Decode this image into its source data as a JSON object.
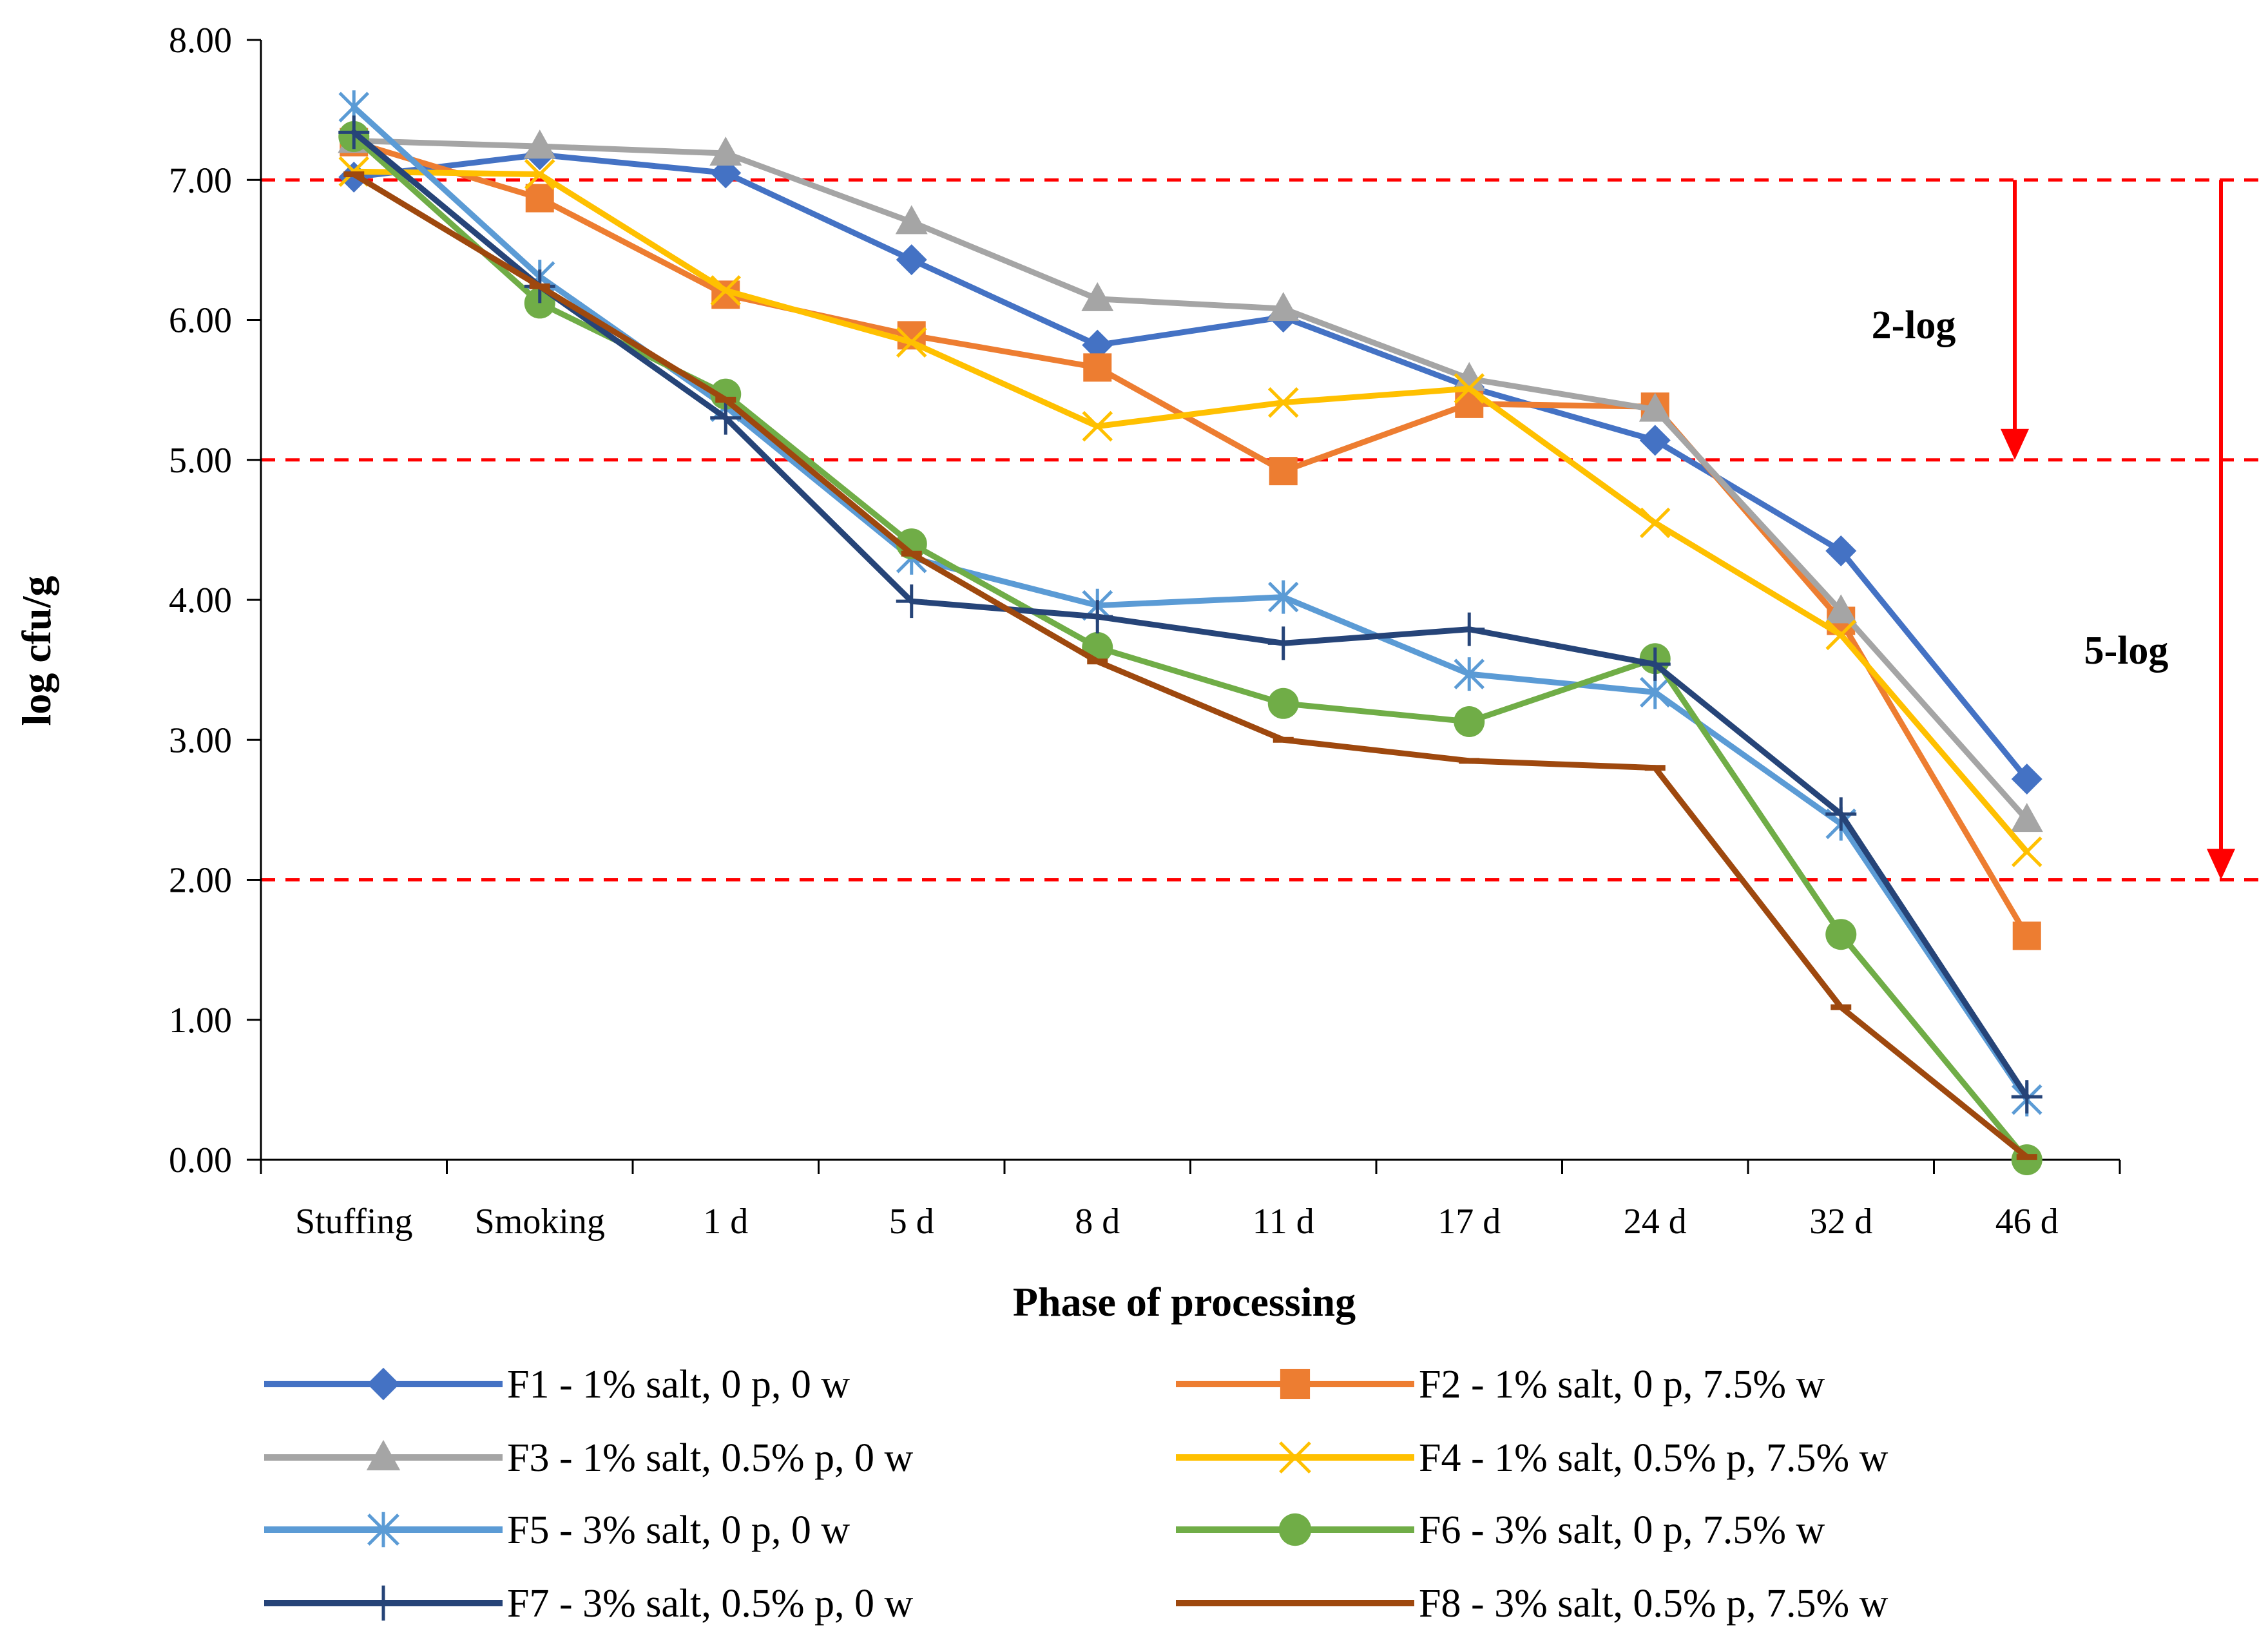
{
  "chart_data": {
    "type": "line",
    "title": "",
    "xlabel": "Phase of processing",
    "ylabel": "log cfu/g",
    "ylim": [
      0,
      8
    ],
    "yticks": [
      "0.00",
      "1.00",
      "2.00",
      "3.00",
      "4.00",
      "5.00",
      "6.00",
      "7.00",
      "8.00"
    ],
    "categories": [
      "Stuffing",
      "Smoking",
      "1 d",
      "5 d",
      "8 d",
      "11 d",
      "17 d",
      "24 d",
      "32 d",
      "46 d"
    ],
    "series": [
      {
        "name": "F1 - 1% salt, 0 p, 0 w",
        "color": "#4472C4",
        "marker": "diamond",
        "values": [
          7.02,
          7.18,
          7.05,
          6.43,
          5.82,
          6.02,
          5.52,
          5.14,
          4.35,
          2.72
        ]
      },
      {
        "name": "F2 - 1% salt, 0 p, 7.5% w",
        "color": "#ED7D31",
        "marker": "square",
        "values": [
          7.27,
          6.87,
          6.18,
          5.89,
          5.66,
          4.92,
          5.4,
          5.38,
          3.85,
          1.6
        ]
      },
      {
        "name": "F3 - 1% salt, 0.5% p, 0 w",
        "color": "#A5A5A5",
        "marker": "triangle",
        "values": [
          7.28,
          7.24,
          7.19,
          6.7,
          6.15,
          6.08,
          5.58,
          5.36,
          3.92,
          2.43
        ]
      },
      {
        "name": "F4 - 1% salt, 0.5% p, 7.5% w",
        "color": "#FFC000",
        "marker": "x",
        "values": [
          7.06,
          7.04,
          6.21,
          5.84,
          5.24,
          5.41,
          5.51,
          4.55,
          3.75,
          2.2
        ]
      },
      {
        "name": "F5 - 3% salt, 0 p, 0 w",
        "color": "#5B9BD5",
        "marker": "asterisk",
        "values": [
          7.52,
          6.31,
          5.38,
          4.3,
          3.96,
          4.02,
          3.47,
          3.34,
          2.4,
          0.43
        ]
      },
      {
        "name": "F6 - 3% salt, 0 p, 7.5% w",
        "color": "#70AD47",
        "marker": "circle",
        "values": [
          7.31,
          6.12,
          5.47,
          4.4,
          3.66,
          3.26,
          3.13,
          3.58,
          1.61,
          0.0
        ]
      },
      {
        "name": "F7 - 3% salt, 0.5% p, 0 w",
        "color": "#264478",
        "marker": "plus",
        "values": [
          7.34,
          6.24,
          5.3,
          3.99,
          3.88,
          3.69,
          3.79,
          3.54,
          2.47,
          0.45
        ]
      },
      {
        "name": "F8 - 3% salt, 0.5% p, 7.5% w",
        "color": "#9E480E",
        "marker": "dash",
        "values": [
          7.04,
          6.24,
          5.43,
          4.33,
          3.56,
          3.0,
          2.85,
          2.8,
          1.09,
          0.02
        ]
      }
    ],
    "reference_lines": [
      7.0,
      5.0,
      2.0
    ],
    "annotations": [
      {
        "text": "2-log",
        "from": 7.0,
        "to": 5.0
      },
      {
        "text": "5-log",
        "from": 7.0,
        "to": 2.0
      }
    ],
    "annotation_color": "#FF0000",
    "legend_position": "bottom"
  }
}
